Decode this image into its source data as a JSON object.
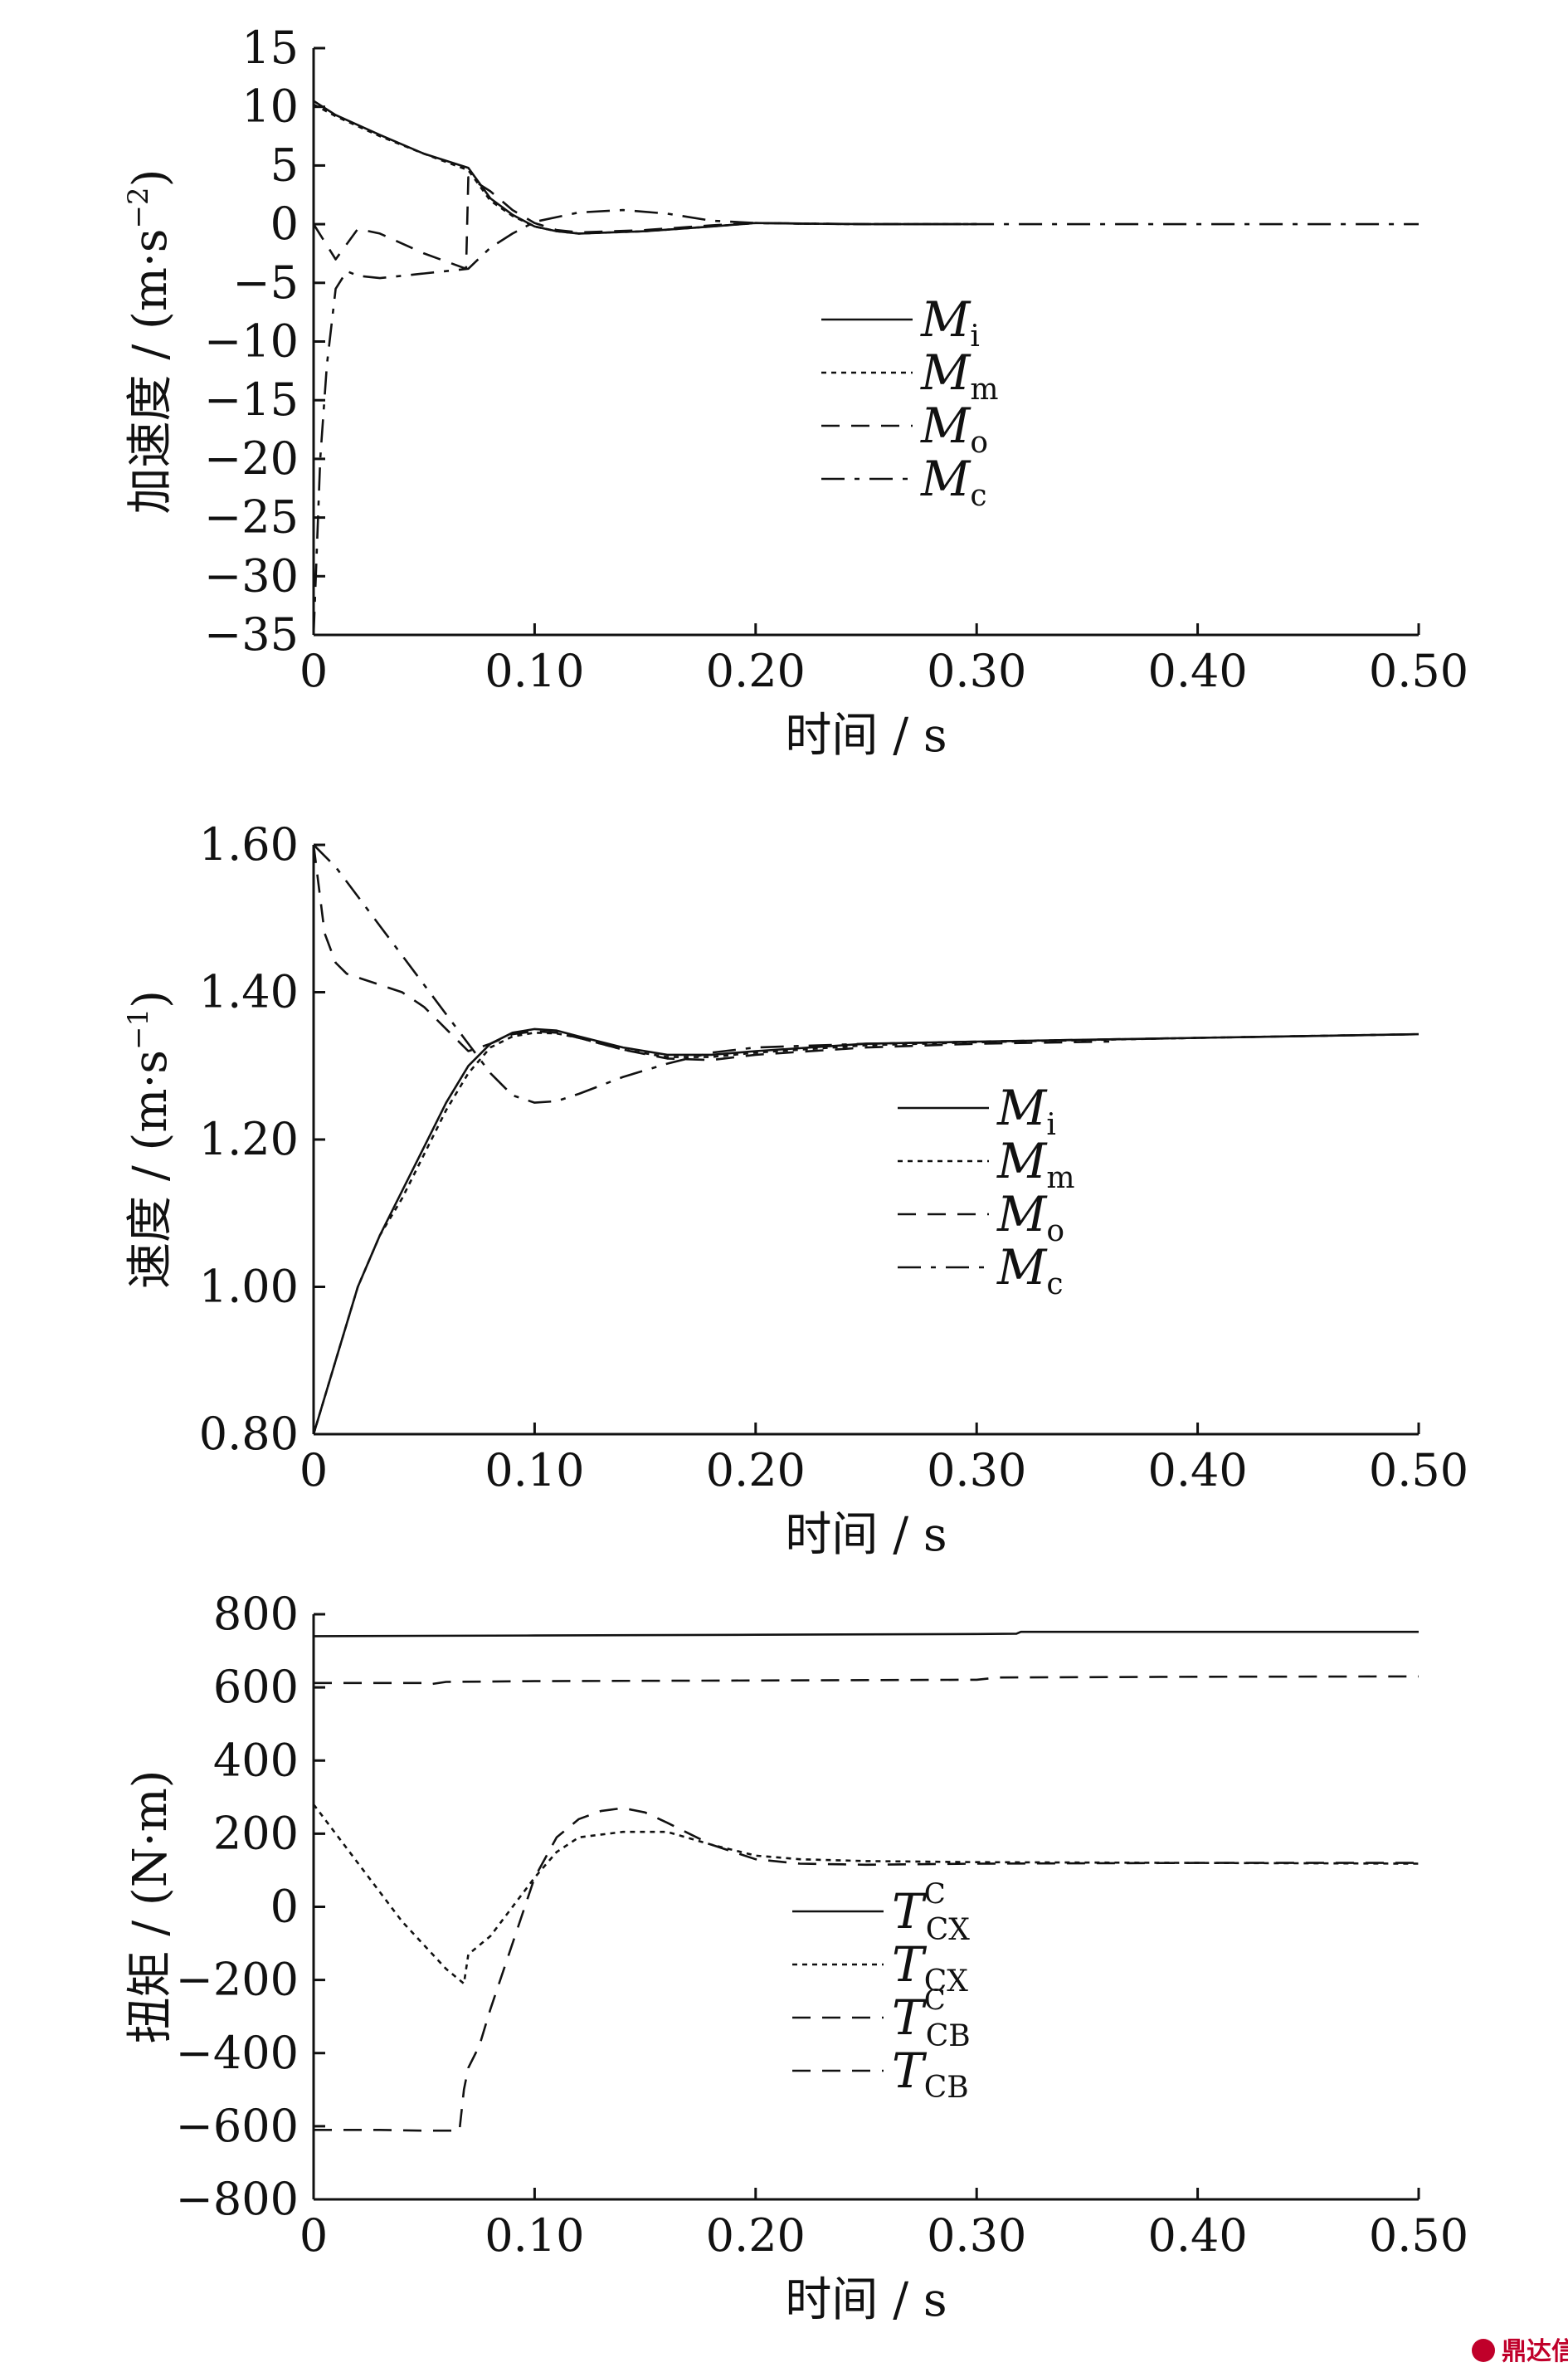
{
  "watermark": {
    "text": "鼎达信"
  },
  "chart_data": [
    {
      "type": "line",
      "xlabel": "时间 / s",
      "ylabel": "加速度 / (m·s",
      "ylabel_sup": "−2",
      "ylabel_close": ")",
      "xlim": [
        0,
        0.5
      ],
      "ylim": [
        -35,
        15
      ],
      "xticks": [
        "0",
        "0.10",
        "0.20",
        "0.30",
        "0.40",
        "0.50"
      ],
      "yticks": [
        "15",
        "10",
        "5",
        "0",
        "−5",
        "−10",
        "−15",
        "−20",
        "−25",
        "−30",
        "−35"
      ],
      "grid": false,
      "legend_position": "center",
      "series": [
        {
          "name": "M",
          "sub": "i",
          "sup": "",
          "style": "solid",
          "x": [
            0,
            0.01,
            0.03,
            0.05,
            0.07,
            0.08,
            0.09,
            0.1,
            0.11,
            0.12,
            0.15,
            0.18,
            0.2,
            0.22,
            0.25,
            0.3
          ],
          "y": [
            10.5,
            9.3,
            7.6,
            6.0,
            4.8,
            2.2,
            0.8,
            -0.2,
            -0.6,
            -0.8,
            -0.6,
            -0.2,
            0.1,
            0.05,
            0.0,
            0.0
          ]
        },
        {
          "name": "M",
          "sub": "m",
          "sup": "",
          "style": "dotted",
          "x": [
            0,
            0.01,
            0.03,
            0.05,
            0.07,
            0.08,
            0.09,
            0.1,
            0.11,
            0.12,
            0.15,
            0.18,
            0.2,
            0.22,
            0.25,
            0.3
          ],
          "y": [
            10.2,
            9.2,
            7.5,
            6.0,
            4.6,
            2.0,
            0.7,
            -0.2,
            -0.6,
            -0.8,
            -0.6,
            -0.2,
            0.1,
            0.05,
            0.0,
            0.0
          ]
        },
        {
          "name": "M",
          "sub": "o",
          "sup": "",
          "style": "dashed",
          "x": [
            0,
            0.01,
            0.02,
            0.03,
            0.05,
            0.069,
            0.07,
            0.08,
            0.09,
            0.1,
            0.11,
            0.12,
            0.15,
            0.18,
            0.2,
            0.22,
            0.25,
            0.3
          ],
          "y": [
            0,
            -3.0,
            -0.4,
            -0.8,
            -2.5,
            -3.8,
            4.0,
            2.8,
            1.2,
            0.1,
            -0.5,
            -0.7,
            -0.5,
            -0.1,
            0.1,
            0.05,
            0.0,
            0.0
          ]
        },
        {
          "name": "M",
          "sub": "c",
          "sup": "",
          "style": "dashdot",
          "x": [
            0,
            0.001,
            0.003,
            0.006,
            0.01,
            0.015,
            0.02,
            0.03,
            0.05,
            0.07,
            0.08,
            0.09,
            0.1,
            0.12,
            0.14,
            0.16,
            0.18,
            0.2,
            0.25,
            0.3,
            0.4,
            0.5
          ],
          "y": [
            -35,
            -30,
            -20,
            -12,
            -5.5,
            -4.0,
            -4.4,
            -4.6,
            -4.2,
            -3.8,
            -2.0,
            -0.8,
            0.2,
            1.0,
            1.2,
            0.9,
            0.3,
            0.1,
            0.0,
            0.0,
            0.0,
            0.0
          ]
        }
      ]
    },
    {
      "type": "line",
      "xlabel": "时间 / s",
      "ylabel": "速度 / (m·s",
      "ylabel_sup": "−1",
      "ylabel_close": ")",
      "xlim": [
        0,
        0.5
      ],
      "ylim": [
        0.8,
        1.6
      ],
      "xticks": [
        "0",
        "0.10",
        "0.20",
        "0.30",
        "0.40",
        "0.50"
      ],
      "yticks": [
        "1.60",
        "1.40",
        "1.20",
        "1.00",
        "0.80"
      ],
      "grid": false,
      "legend_position": "center",
      "series": [
        {
          "name": "M",
          "sub": "i",
          "sup": "",
          "style": "solid",
          "x": [
            0,
            0.01,
            0.02,
            0.03,
            0.04,
            0.05,
            0.06,
            0.07,
            0.08,
            0.09,
            0.1,
            0.11,
            0.12,
            0.14,
            0.16,
            0.18,
            0.2,
            0.25,
            0.3,
            0.4,
            0.5
          ],
          "y": [
            0.8,
            0.9,
            1.0,
            1.07,
            1.13,
            1.19,
            1.25,
            1.3,
            1.33,
            1.345,
            1.35,
            1.348,
            1.34,
            1.325,
            1.315,
            1.315,
            1.32,
            1.33,
            1.333,
            1.338,
            1.343
          ]
        },
        {
          "name": "M",
          "sub": "m",
          "sup": "",
          "style": "dotted",
          "x": [
            0,
            0.01,
            0.02,
            0.03,
            0.04,
            0.05,
            0.06,
            0.07,
            0.08,
            0.09,
            0.1,
            0.11,
            0.12,
            0.14,
            0.16,
            0.18,
            0.2,
            0.25,
            0.3,
            0.4,
            0.5
          ],
          "y": [
            0.8,
            0.9,
            1.0,
            1.07,
            1.12,
            1.18,
            1.24,
            1.29,
            1.325,
            1.34,
            1.345,
            1.344,
            1.338,
            1.322,
            1.312,
            1.312,
            1.318,
            1.328,
            1.332,
            1.338,
            1.343
          ]
        },
        {
          "name": "M",
          "sub": "o",
          "sup": "",
          "style": "dashed",
          "x": [
            0,
            0.005,
            0.01,
            0.015,
            0.02,
            0.03,
            0.04,
            0.05,
            0.06,
            0.07,
            0.08,
            0.09,
            0.1,
            0.11,
            0.12,
            0.14,
            0.16,
            0.18,
            0.2,
            0.25,
            0.3,
            0.36
          ],
          "y": [
            1.6,
            1.48,
            1.44,
            1.425,
            1.42,
            1.41,
            1.4,
            1.38,
            1.35,
            1.32,
            1.33,
            1.343,
            1.347,
            1.345,
            1.338,
            1.322,
            1.31,
            1.308,
            1.315,
            1.325,
            1.33,
            1.333
          ]
        },
        {
          "name": "M",
          "sub": "c",
          "sup": "",
          "style": "dashdot",
          "x": [
            0,
            0.01,
            0.02,
            0.03,
            0.04,
            0.05,
            0.06,
            0.07,
            0.08,
            0.09,
            0.1,
            0.11,
            0.12,
            0.14,
            0.16,
            0.18,
            0.2,
            0.25,
            0.3,
            0.4,
            0.5
          ],
          "y": [
            1.6,
            1.57,
            1.53,
            1.49,
            1.45,
            1.41,
            1.37,
            1.33,
            1.29,
            1.26,
            1.25,
            1.252,
            1.262,
            1.285,
            1.303,
            1.318,
            1.325,
            1.33,
            1.333,
            1.338,
            1.343
          ]
        }
      ]
    },
    {
      "type": "line",
      "xlabel": "时间 / s",
      "ylabel": "扭矩 / (N·m",
      "ylabel_sup": "",
      "ylabel_close": ")",
      "xlim": [
        0,
        0.5
      ],
      "ylim": [
        -800,
        800
      ],
      "xticks": [
        "0",
        "0.10",
        "0.20",
        "0.30",
        "0.40",
        "0.50"
      ],
      "yticks": [
        "800",
        "600",
        "400",
        "200",
        "0",
        "−200",
        "−400",
        "−600",
        "−800"
      ],
      "grid": false,
      "legend_position": "center-left",
      "series": [
        {
          "name": "T",
          "sub": "CX",
          "sup": "C",
          "style": "solid",
          "x": [
            0,
            0.1,
            0.2,
            0.3,
            0.318,
            0.32,
            0.4,
            0.5
          ],
          "y": [
            740,
            742,
            744,
            746,
            747,
            752,
            752,
            752
          ]
        },
        {
          "name": "T",
          "sub": "CX",
          "sup": "",
          "style": "dotted",
          "x": [
            0,
            0.02,
            0.04,
            0.06,
            0.068,
            0.07,
            0.08,
            0.09,
            0.1,
            0.11,
            0.12,
            0.14,
            0.16,
            0.18,
            0.2,
            0.22,
            0.25,
            0.3,
            0.4,
            0.5
          ],
          "y": [
            280,
            120,
            -40,
            -170,
            -210,
            -130,
            -80,
            0,
            80,
            150,
            190,
            205,
            205,
            170,
            140,
            130,
            125,
            122,
            120,
            118
          ]
        },
        {
          "name": "T",
          "sub": "CB",
          "sup": "C",
          "style": "dashed",
          "x": [
            0,
            0.05,
            0.052,
            0.06,
            0.1,
            0.2,
            0.3,
            0.31,
            0.4,
            0.5
          ],
          "y": [
            612,
            612,
            608,
            615,
            617,
            619,
            621,
            627,
            629,
            630
          ]
        },
        {
          "name": "T",
          "sub": "CB",
          "sup": "",
          "style": "dashed",
          "x": [
            0,
            0.03,
            0.05,
            0.066,
            0.068,
            0.07,
            0.075,
            0.08,
            0.09,
            0.1,
            0.11,
            0.12,
            0.13,
            0.14,
            0.15,
            0.16,
            0.18,
            0.2,
            0.22,
            0.25,
            0.3,
            0.4,
            0.5
          ],
          "y": [
            -610,
            -610,
            -612,
            -612,
            -500,
            -440,
            -380,
            -280,
            -100,
            80,
            190,
            240,
            262,
            270,
            258,
            230,
            170,
            130,
            118,
            115,
            118,
            120,
            120
          ]
        }
      ]
    }
  ]
}
